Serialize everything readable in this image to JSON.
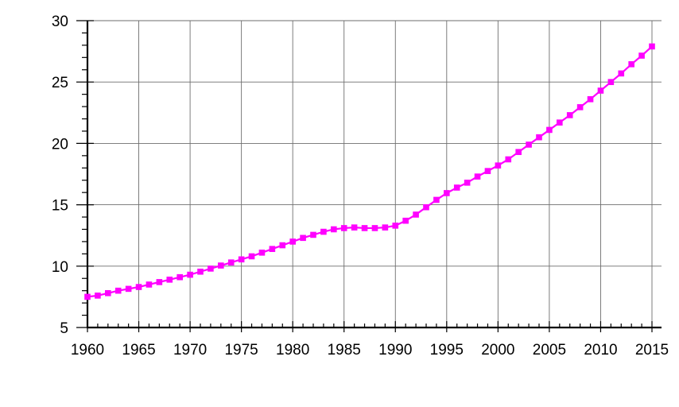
{
  "chart_data": {
    "type": "line",
    "title": "",
    "xlabel": "",
    "ylabel": "",
    "xlim": [
      1960,
      2015
    ],
    "ylim": [
      5,
      30
    ],
    "x_ticks": [
      "1960",
      "1965",
      "1970",
      "1975",
      "1980",
      "1985",
      "1990",
      "1995",
      "2000",
      "2005",
      "2010",
      "2015"
    ],
    "y_ticks": [
      "5",
      "10",
      "15",
      "20",
      "25",
      "30"
    ],
    "grid": true,
    "legend": "none",
    "marker": "square",
    "color": "#ff00ff",
    "series": [
      {
        "x": [
          1960,
          1961,
          1962,
          1963,
          1964,
          1965,
          1966,
          1967,
          1968,
          1969,
          1970,
          1971,
          1972,
          1973,
          1974,
          1975,
          1976,
          1977,
          1978,
          1979,
          1980,
          1981,
          1982,
          1983,
          1984,
          1985,
          1986,
          1987,
          1988,
          1989,
          1990,
          1991,
          1992,
          1993,
          1994,
          1995,
          1996,
          1997,
          1998,
          1999,
          2000,
          2001,
          2002,
          2003,
          2004,
          2005,
          2006,
          2007,
          2008,
          2009,
          2010,
          2011,
          2012,
          2013,
          2014,
          2015
        ],
        "values": [
          7.5,
          7.6,
          7.8,
          8.0,
          8.15,
          8.3,
          8.5,
          8.7,
          8.9,
          9.1,
          9.3,
          9.55,
          9.8,
          10.05,
          10.3,
          10.55,
          10.8,
          11.1,
          11.4,
          11.7,
          12.0,
          12.3,
          12.55,
          12.8,
          13.0,
          13.1,
          13.15,
          13.1,
          13.1,
          13.15,
          13.3,
          13.7,
          14.2,
          14.8,
          15.4,
          15.95,
          16.4,
          16.8,
          17.3,
          17.75,
          18.2,
          18.7,
          19.3,
          19.9,
          20.5,
          21.1,
          21.7,
          22.3,
          22.95,
          23.6,
          24.3,
          25.0,
          25.7,
          26.45,
          27.15,
          27.9
        ]
      }
    ]
  }
}
